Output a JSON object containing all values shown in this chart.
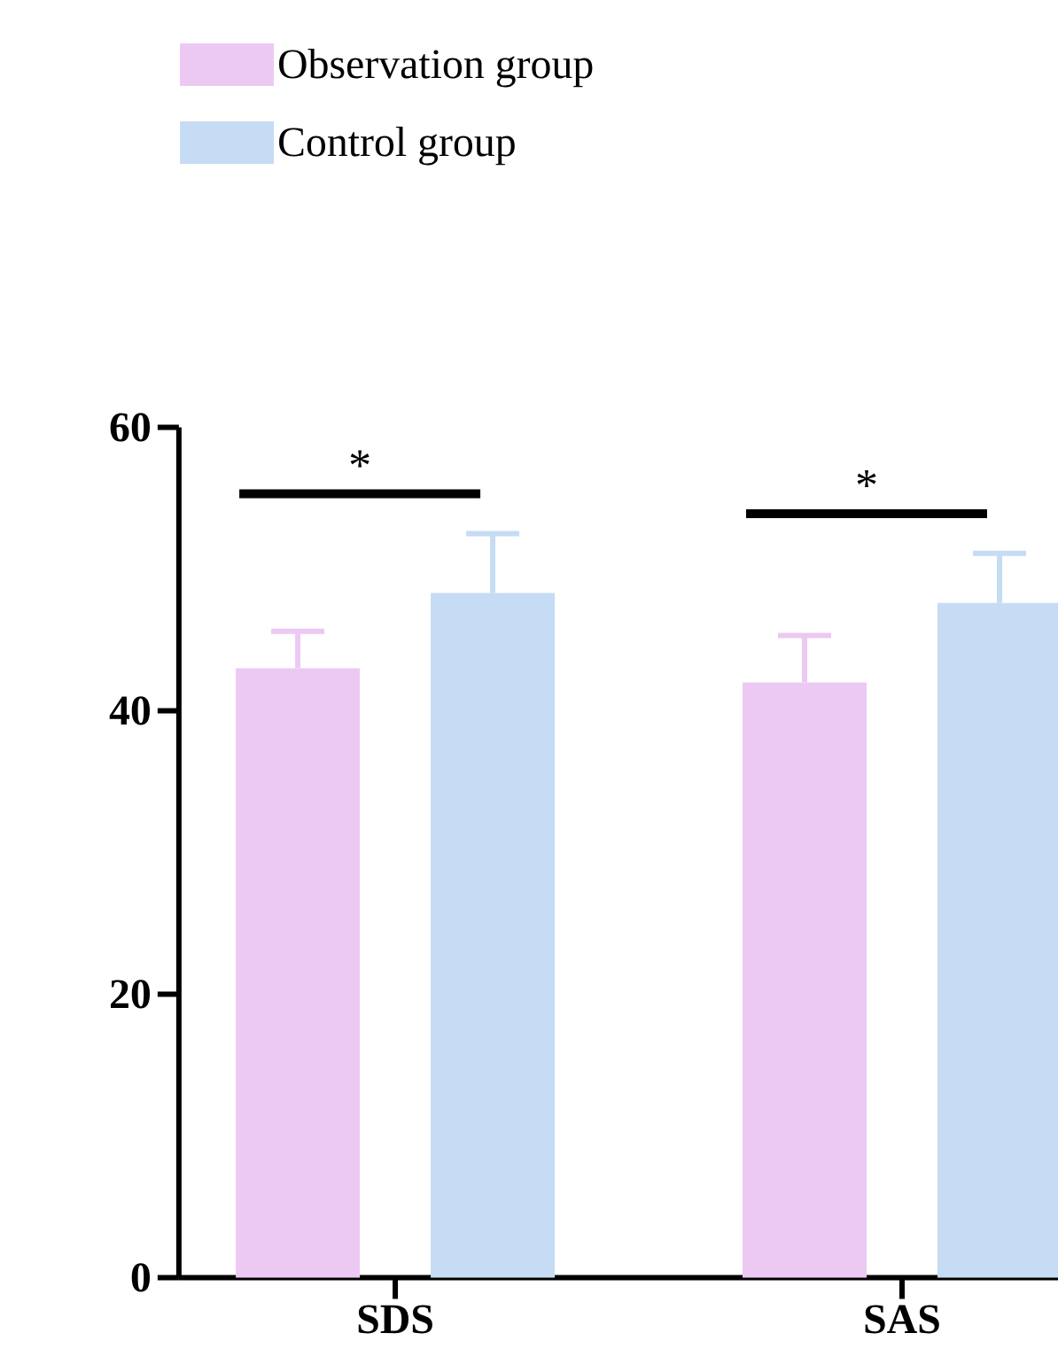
{
  "chart_data": {
    "type": "bar",
    "categories": [
      "SDS",
      "SAS"
    ],
    "series": [
      {
        "name": "Observation group",
        "color": "#ecc9f3",
        "values": [
          43.0,
          42.0
        ],
        "errors": [
          [
            43.0,
            45.6
          ],
          [
            42.0,
            45.3
          ]
        ]
      },
      {
        "name": "Control group",
        "color": "#c6dcf4",
        "values": [
          48.3,
          47.6
        ],
        "errors": [
          [
            48.3,
            52.5
          ],
          [
            47.6,
            51.1
          ]
        ]
      }
    ],
    "ylim": [
      0,
      60
    ],
    "yticks": [
      0,
      20,
      40,
      60
    ],
    "annotations": [
      "*",
      "*"
    ],
    "grid": false,
    "legend": "top left"
  }
}
